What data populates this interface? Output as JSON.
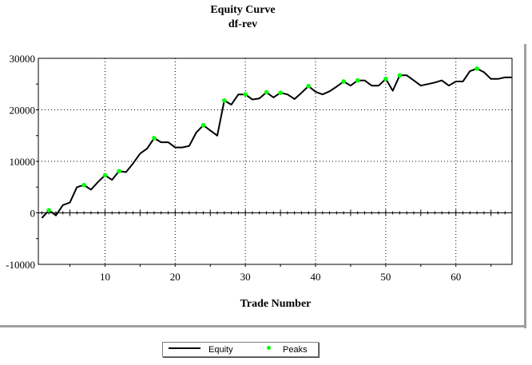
{
  "chart_data": {
    "type": "line",
    "title": "Equity Curve",
    "subtitle": "df-rev",
    "xlabel": "Trade Number",
    "ylabel": "",
    "xlim": [
      0.5,
      68
    ],
    "ylim": [
      -10000,
      30000
    ],
    "x_ticks": [
      10,
      20,
      30,
      40,
      50,
      60
    ],
    "y_ticks": [
      30000,
      20000,
      10000,
      0,
      -10000
    ],
    "grid": true,
    "legend_position": "bottom-center",
    "series": [
      {
        "name": "Equity",
        "color": "#000000",
        "style": "line",
        "x": [
          1,
          2,
          3,
          4,
          5,
          6,
          7,
          8,
          9,
          10,
          11,
          12,
          13,
          14,
          15,
          16,
          17,
          18,
          19,
          20,
          21,
          22,
          23,
          24,
          25,
          26,
          27,
          28,
          29,
          30,
          31,
          32,
          33,
          34,
          35,
          36,
          37,
          38,
          39,
          40,
          41,
          42,
          43,
          44,
          45,
          46,
          47,
          48,
          49,
          50,
          51,
          52,
          53,
          54,
          55,
          56,
          57,
          58,
          59,
          60,
          61,
          62,
          63,
          64,
          65,
          66,
          67,
          68
        ],
        "y": [
          -1000,
          500,
          -500,
          1500,
          2000,
          5000,
          5400,
          4500,
          6000,
          7300,
          6400,
          8100,
          7900,
          9600,
          11500,
          12500,
          14500,
          13700,
          13700,
          12700,
          12700,
          13000,
          15600,
          17000,
          16000,
          15000,
          21800,
          21000,
          23000,
          23000,
          22000,
          22200,
          23400,
          22400,
          23300,
          23000,
          22100,
          23300,
          24600,
          23500,
          23000,
          23600,
          24500,
          25500,
          24700,
          25700,
          25700,
          24700,
          24700,
          26000,
          23700,
          26700,
          26700,
          25700,
          24700,
          25000,
          25300,
          25700,
          24700,
          25500,
          25500,
          27500,
          28000,
          27300,
          26000,
          26000,
          26300,
          26300
        ]
      },
      {
        "name": "Peaks",
        "color": "#00ff00",
        "style": "points",
        "x": [
          2,
          7,
          10,
          12,
          17,
          24,
          27,
          30,
          33,
          35,
          39,
          44,
          46,
          50,
          52,
          63
        ],
        "y": [
          500,
          5400,
          7300,
          8100,
          14500,
          17000,
          21800,
          23000,
          23400,
          23300,
          24600,
          25500,
          25700,
          26000,
          26700,
          28000
        ]
      }
    ]
  }
}
